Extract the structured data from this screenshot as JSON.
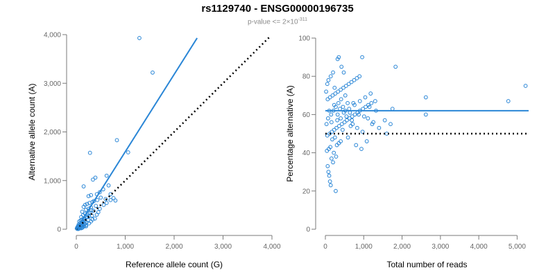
{
  "title": "rs1129740 - ENSG00000196735",
  "subtitle": {
    "base": "p-value <= 2×10",
    "exponent": "-311"
  },
  "chart_data": [
    {
      "type": "scatter",
      "name_key": "left",
      "xlabel": "Reference allele count (G)",
      "ylabel": "Alternative allele count (A)",
      "xlim": [
        0,
        4000
      ],
      "ylim": [
        0,
        4000
      ],
      "xticks": [
        0,
        1000,
        2000,
        3000,
        4000
      ],
      "xtick_labels": [
        "0",
        "1,000",
        "2,000",
        "3,000",
        "4,000"
      ],
      "yticks": [
        0,
        1000,
        2000,
        3000,
        4000
      ],
      "ytick_labels": [
        "0",
        "1,000",
        "2,000",
        "3,000",
        "4,000"
      ],
      "fit_line": {
        "from": [
          0,
          0
        ],
        "to": [
          2470,
          3930
        ]
      },
      "reference_line": {
        "from": [
          0,
          0
        ],
        "to": [
          3950,
          3950
        ]
      },
      "points": [
        [
          1290,
          3930
        ],
        [
          1560,
          3220
        ],
        [
          830,
          1830
        ],
        [
          1060,
          1580
        ],
        [
          280,
          1570
        ],
        [
          390,
          1060
        ],
        [
          340,
          1020
        ],
        [
          620,
          1100
        ],
        [
          660,
          900
        ],
        [
          150,
          880
        ],
        [
          550,
          820
        ],
        [
          480,
          760
        ],
        [
          420,
          720
        ],
        [
          300,
          700
        ],
        [
          250,
          680
        ],
        [
          500,
          650
        ],
        [
          430,
          600
        ],
        [
          360,
          580
        ],
        [
          600,
          620
        ],
        [
          700,
          600
        ],
        [
          330,
          560
        ],
        [
          270,
          540
        ],
        [
          220,
          520
        ],
        [
          180,
          500
        ],
        [
          400,
          480
        ],
        [
          150,
          460
        ],
        [
          300,
          450
        ],
        [
          250,
          420
        ],
        [
          200,
          400
        ],
        [
          350,
          380
        ],
        [
          120,
          360
        ],
        [
          450,
          350
        ],
        [
          280,
          340
        ],
        [
          180,
          320
        ],
        [
          220,
          300
        ],
        [
          140,
          290
        ],
        [
          320,
          280
        ],
        [
          260,
          260
        ],
        [
          100,
          250
        ],
        [
          200,
          240
        ],
        [
          160,
          220
        ],
        [
          380,
          220
        ],
        [
          120,
          200
        ],
        [
          240,
          190
        ],
        [
          90,
          180
        ],
        [
          180,
          170
        ],
        [
          60,
          160
        ],
        [
          300,
          160
        ],
        [
          140,
          150
        ],
        [
          210,
          140
        ],
        [
          80,
          130
        ],
        [
          120,
          120
        ],
        [
          170,
          110
        ],
        [
          50,
          100
        ],
        [
          100,
          95
        ],
        [
          140,
          90
        ],
        [
          200,
          85
        ],
        [
          70,
          80
        ],
        [
          40,
          70
        ],
        [
          110,
          65
        ],
        [
          160,
          60
        ],
        [
          30,
          55
        ],
        [
          90,
          50
        ],
        [
          60,
          40
        ],
        [
          130,
          40
        ],
        [
          20,
          35
        ],
        [
          50,
          30
        ],
        [
          80,
          25
        ],
        [
          30,
          20
        ],
        [
          10,
          15
        ],
        [
          60,
          15
        ],
        [
          100,
          20
        ],
        [
          20,
          8
        ],
        [
          40,
          5
        ],
        [
          120,
          30
        ],
        [
          200,
          60
        ],
        [
          260,
          120
        ],
        [
          330,
          200
        ],
        [
          420,
          300
        ],
        [
          480,
          420
        ],
        [
          560,
          500
        ],
        [
          620,
          540
        ],
        [
          700,
          720
        ],
        [
          760,
          640
        ],
        [
          800,
          590
        ],
        [
          230,
          250
        ],
        [
          170,
          200
        ],
        [
          110,
          140
        ],
        [
          250,
          330
        ],
        [
          310,
          390
        ]
      ]
    },
    {
      "type": "scatter",
      "name_key": "right",
      "xlabel": "Total number of reads",
      "ylabel": "Percentage alternative (A)",
      "xlim": [
        0,
        5300
      ],
      "ylim": [
        0,
        100
      ],
      "xticks": [
        0,
        1000,
        2000,
        3000,
        4000,
        5000
      ],
      "xtick_labels": [
        "0",
        "1,000",
        "2,000",
        "3,000",
        "4,000",
        "5,000"
      ],
      "yticks": [
        0,
        20,
        40,
        60,
        80,
        100
      ],
      "ytick_labels": [
        "0",
        "20",
        "40",
        "60",
        "80",
        "100"
      ],
      "fit_line": {
        "from": [
          0,
          62
        ],
        "to": [
          5300,
          62
        ]
      },
      "reference_line": {
        "from": [
          0,
          50
        ],
        "to": [
          5300,
          50
        ]
      },
      "points": [
        [
          5220,
          75
        ],
        [
          4770,
          67
        ],
        [
          2620,
          69
        ],
        [
          2620,
          60
        ],
        [
          1830,
          85
        ],
        [
          1750,
          63
        ],
        [
          1700,
          55
        ],
        [
          1550,
          57
        ],
        [
          1600,
          50
        ],
        [
          1400,
          53
        ],
        [
          960,
          90
        ],
        [
          350,
          90
        ],
        [
          320,
          89
        ],
        [
          480,
          82
        ],
        [
          420,
          85
        ],
        [
          270,
          20
        ],
        [
          140,
          23
        ],
        [
          120,
          25
        ],
        [
          100,
          28
        ],
        [
          80,
          30
        ],
        [
          60,
          33
        ],
        [
          200,
          35
        ],
        [
          160,
          37
        ],
        [
          280,
          38
        ],
        [
          220,
          40
        ],
        [
          40,
          41
        ],
        [
          90,
          42
        ],
        [
          130,
          43
        ],
        [
          300,
          44
        ],
        [
          350,
          45
        ],
        [
          400,
          46
        ],
        [
          180,
          47
        ],
        [
          250,
          48
        ],
        [
          50,
          49
        ],
        [
          110,
          50
        ],
        [
          170,
          51
        ],
        [
          230,
          52
        ],
        [
          290,
          53
        ],
        [
          360,
          54
        ],
        [
          430,
          55
        ],
        [
          500,
          56
        ],
        [
          560,
          57
        ],
        [
          630,
          58
        ],
        [
          700,
          59
        ],
        [
          770,
          60
        ],
        [
          840,
          61
        ],
        [
          900,
          62
        ],
        [
          980,
          63
        ],
        [
          1050,
          64
        ],
        [
          1120,
          65
        ],
        [
          1200,
          66
        ],
        [
          1300,
          67
        ],
        [
          60,
          68
        ],
        [
          120,
          69
        ],
        [
          190,
          70
        ],
        [
          260,
          71
        ],
        [
          330,
          72
        ],
        [
          400,
          73
        ],
        [
          470,
          74
        ],
        [
          540,
          75
        ],
        [
          610,
          76
        ],
        [
          680,
          77
        ],
        [
          750,
          78
        ],
        [
          820,
          79
        ],
        [
          890,
          80
        ],
        [
          30,
          55
        ],
        [
          70,
          58
        ],
        [
          150,
          60
        ],
        [
          210,
          62
        ],
        [
          270,
          64
        ],
        [
          340,
          66
        ],
        [
          410,
          68
        ],
        [
          480,
          61
        ],
        [
          550,
          59
        ],
        [
          620,
          63
        ],
        [
          690,
          57
        ],
        [
          760,
          65
        ],
        [
          830,
          53
        ],
        [
          900,
          67
        ],
        [
          970,
          51
        ],
        [
          1040,
          69
        ],
        [
          1110,
          58
        ],
        [
          1180,
          71
        ],
        [
          1250,
          56
        ],
        [
          1320,
          62
        ],
        [
          20,
          72
        ],
        [
          50,
          76
        ],
        [
          80,
          78
        ],
        [
          140,
          80
        ],
        [
          200,
          82
        ],
        [
          230,
          65
        ],
        [
          310,
          57
        ],
        [
          380,
          63
        ],
        [
          450,
          52
        ],
        [
          520,
          70
        ],
        [
          590,
          48
        ],
        [
          660,
          54
        ],
        [
          730,
          66
        ],
        [
          800,
          44
        ],
        [
          870,
          60
        ],
        [
          940,
          42
        ],
        [
          1010,
          59
        ],
        [
          1080,
          46
        ],
        [
          1150,
          64
        ],
        [
          1220,
          55
        ],
        [
          100,
          62
        ],
        [
          160,
          56
        ],
        [
          240,
          74
        ],
        [
          320,
          60
        ],
        [
          400,
          58
        ],
        [
          460,
          64
        ],
        [
          520,
          62
        ],
        [
          580,
          66
        ],
        [
          640,
          61
        ],
        [
          710,
          55
        ]
      ]
    }
  ]
}
